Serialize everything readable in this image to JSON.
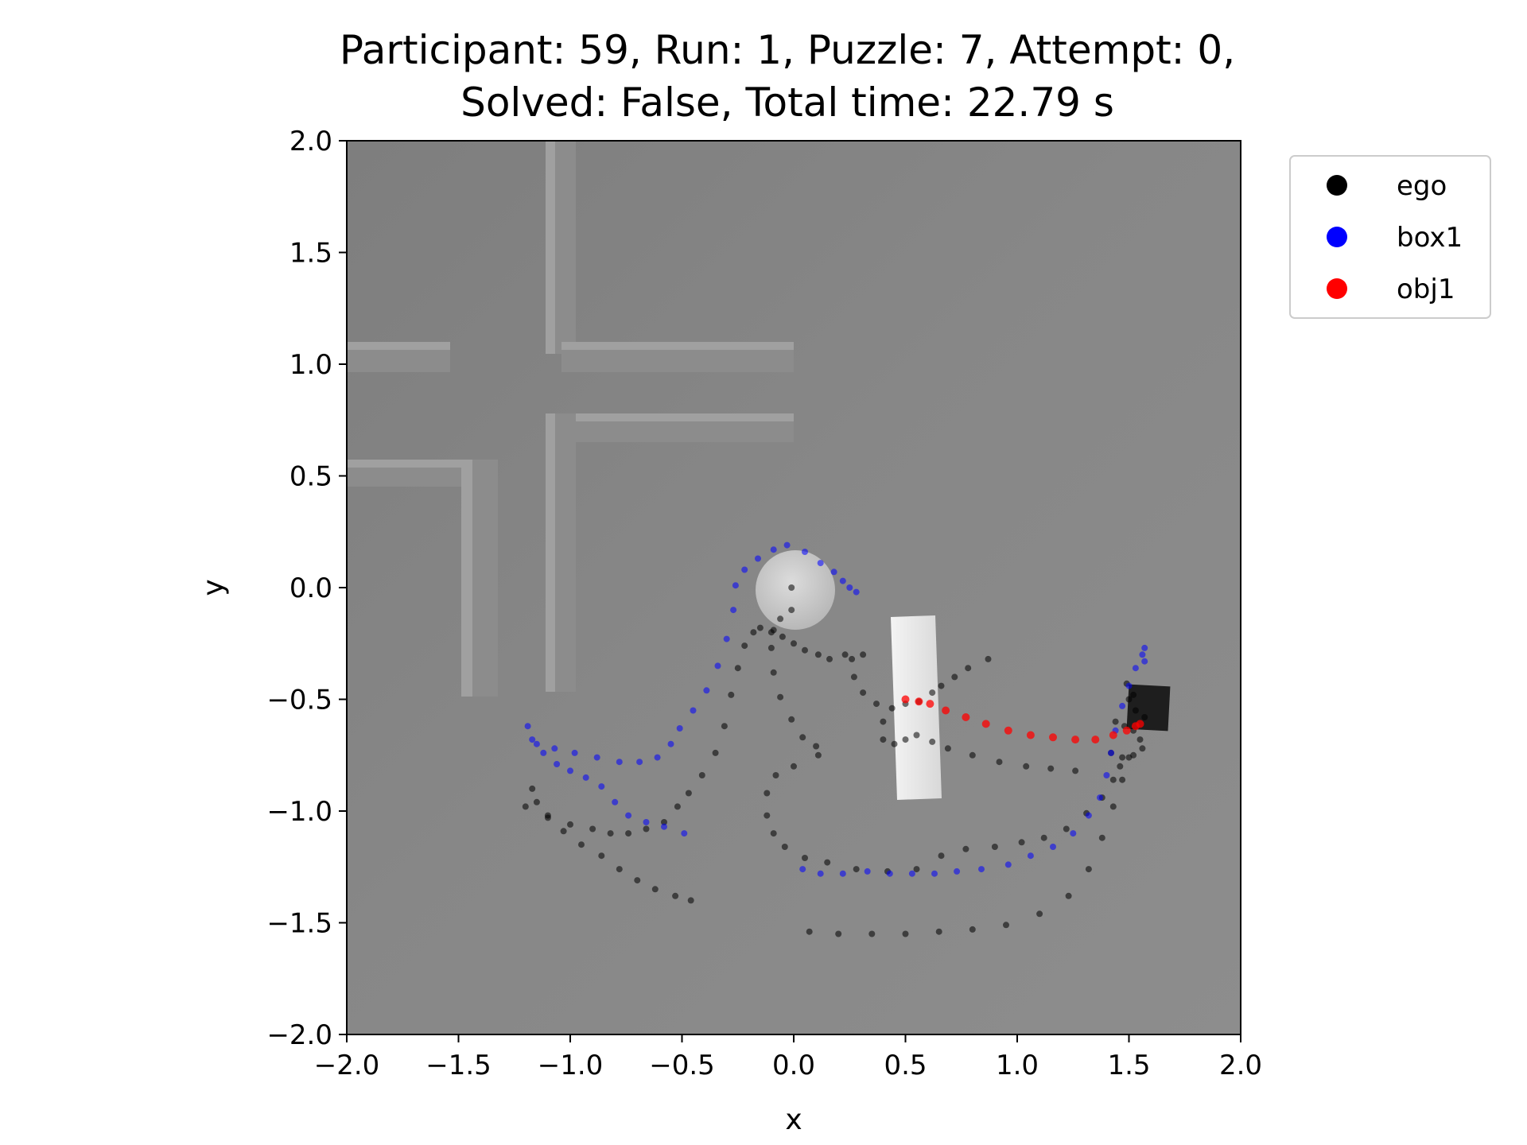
{
  "chart_data": {
    "type": "scatter",
    "title": "Participant: 59, Run: 1, Puzzle: 7, Attempt: 0,",
    "subtitle": "Solved: False, Total time: 22.79 s",
    "xlabel": "x",
    "ylabel": "y",
    "xlim": [
      -2.0,
      2.0
    ],
    "ylim": [
      -2.0,
      2.0
    ],
    "xticks": [
      "−2.0",
      "−1.5",
      "−1.0",
      "−0.5",
      "0.0",
      "0.5",
      "1.0",
      "1.5",
      "2.0"
    ],
    "yticks": [
      "−2.0",
      "−1.5",
      "−1.0",
      "−0.5",
      "0.0",
      "0.5",
      "1.0",
      "1.5",
      "2.0"
    ],
    "xtick_values": [
      -2.0,
      -1.5,
      -1.0,
      -0.5,
      0.0,
      0.5,
      1.0,
      1.5,
      2.0
    ],
    "ytick_values": [
      -2.0,
      -1.5,
      -1.0,
      -0.5,
      0.0,
      0.5,
      1.0,
      1.5,
      2.0
    ],
    "grid": false,
    "legend_position": "outside upper right",
    "background": "rendered top-down grey scene (walls, cylinder, white bar, dark cube)",
    "series": [
      {
        "name": "ego",
        "color": "#000000",
        "points": [
          [
            -1.17,
            -0.9
          ],
          [
            -1.15,
            -0.96
          ],
          [
            -1.1,
            -1.03
          ],
          [
            -1.03,
            -1.09
          ],
          [
            -0.95,
            -1.15
          ],
          [
            -0.86,
            -1.2
          ],
          [
            -0.78,
            -1.26
          ],
          [
            -0.7,
            -1.31
          ],
          [
            -0.62,
            -1.35
          ],
          [
            -0.53,
            -1.38
          ],
          [
            -0.46,
            -1.4
          ],
          [
            -1.2,
            -0.98
          ],
          [
            -1.1,
            -1.02
          ],
          [
            -1.0,
            -1.06
          ],
          [
            -0.9,
            -1.08
          ],
          [
            -0.82,
            -1.1
          ],
          [
            -0.74,
            -1.1
          ],
          [
            -0.66,
            -1.08
          ],
          [
            -0.58,
            -1.05
          ],
          [
            -0.52,
            -0.98
          ],
          [
            -0.47,
            -0.92
          ],
          [
            -0.41,
            -0.84
          ],
          [
            -0.35,
            -0.74
          ],
          [
            -0.31,
            -0.62
          ],
          [
            -0.28,
            -0.48
          ],
          [
            -0.25,
            -0.36
          ],
          [
            -0.22,
            -0.26
          ],
          [
            -0.18,
            -0.2
          ],
          [
            -0.15,
            -0.18
          ],
          [
            -0.1,
            -0.2
          ],
          [
            -0.05,
            -0.22
          ],
          [
            0.0,
            -0.25
          ],
          [
            0.05,
            -0.28
          ],
          [
            0.11,
            -0.3
          ],
          [
            0.16,
            -0.32
          ],
          [
            0.23,
            -0.3
          ],
          [
            0.31,
            -0.3
          ],
          [
            -0.01,
            0.0
          ],
          [
            -0.01,
            -0.1
          ],
          [
            -0.06,
            -0.14
          ],
          [
            -0.09,
            -0.19
          ],
          [
            -0.1,
            -0.27
          ],
          [
            -0.09,
            -0.38
          ],
          [
            -0.06,
            -0.49
          ],
          [
            -0.01,
            -0.59
          ],
          [
            0.04,
            -0.67
          ],
          [
            0.1,
            -0.71
          ],
          [
            0.11,
            -0.75
          ],
          [
            0.0,
            -0.8
          ],
          [
            -0.08,
            -0.84
          ],
          [
            -0.12,
            -0.92
          ],
          [
            -0.12,
            -1.02
          ],
          [
            -0.09,
            -1.1
          ],
          [
            -0.04,
            -1.16
          ],
          [
            0.05,
            -1.21
          ],
          [
            0.15,
            -1.23
          ],
          [
            0.28,
            -1.26
          ],
          [
            0.42,
            -1.27
          ],
          [
            0.55,
            -1.26
          ],
          [
            0.66,
            -1.2
          ],
          [
            0.77,
            -1.17
          ],
          [
            0.9,
            -1.16
          ],
          [
            1.02,
            -1.14
          ],
          [
            1.12,
            -1.12
          ],
          [
            1.22,
            -1.08
          ],
          [
            1.31,
            -1.01
          ],
          [
            1.38,
            -0.94
          ],
          [
            1.43,
            -0.86
          ],
          [
            1.46,
            -0.8
          ],
          [
            0.07,
            -1.54
          ],
          [
            0.2,
            -1.55
          ],
          [
            0.35,
            -1.55
          ],
          [
            0.5,
            -1.55
          ],
          [
            0.65,
            -1.54
          ],
          [
            0.8,
            -1.53
          ],
          [
            0.95,
            -1.51
          ],
          [
            1.1,
            -1.46
          ],
          [
            1.23,
            -1.38
          ],
          [
            1.32,
            -1.26
          ],
          [
            1.38,
            -1.12
          ],
          [
            1.43,
            -0.98
          ],
          [
            1.47,
            -0.86
          ],
          [
            1.5,
            -0.76
          ],
          [
            0.26,
            -0.32
          ],
          [
            0.27,
            -0.4
          ],
          [
            0.31,
            -0.47
          ],
          [
            0.37,
            -0.52
          ],
          [
            0.44,
            -0.54
          ],
          [
            0.5,
            -0.52
          ],
          [
            0.56,
            -0.51
          ],
          [
            0.4,
            -0.6
          ],
          [
            0.4,
            -0.68
          ],
          [
            0.45,
            -0.7
          ],
          [
            0.5,
            -0.68
          ],
          [
            0.55,
            -0.66
          ],
          [
            0.62,
            -0.69
          ],
          [
            0.69,
            -0.72
          ],
          [
            0.8,
            -0.75
          ],
          [
            0.92,
            -0.78
          ],
          [
            1.04,
            -0.8
          ],
          [
            1.15,
            -0.81
          ],
          [
            1.26,
            -0.82
          ],
          [
            0.62,
            -0.47
          ],
          [
            0.66,
            -0.44
          ],
          [
            0.72,
            -0.4
          ],
          [
            0.78,
            -0.36
          ],
          [
            0.87,
            -0.32
          ],
          [
            1.44,
            -0.6
          ],
          [
            1.48,
            -0.62
          ],
          [
            1.52,
            -0.64
          ],
          [
            1.55,
            -0.68
          ],
          [
            1.56,
            -0.72
          ],
          [
            1.52,
            -0.75
          ],
          [
            1.47,
            -0.76
          ],
          [
            1.42,
            -0.74
          ],
          [
            1.5,
            -0.5
          ],
          [
            1.53,
            -0.55
          ],
          [
            1.57,
            -0.58
          ],
          [
            1.49,
            -0.43
          ],
          [
            1.52,
            -0.48
          ]
        ]
      },
      {
        "name": "box1",
        "color": "#0000ff",
        "points": [
          [
            -1.19,
            -0.62
          ],
          [
            -1.17,
            -0.68
          ],
          [
            -1.12,
            -0.74
          ],
          [
            -1.06,
            -0.79
          ],
          [
            -1.0,
            -0.82
          ],
          [
            -0.93,
            -0.85
          ],
          [
            -0.86,
            -0.89
          ],
          [
            -0.8,
            -0.96
          ],
          [
            -0.74,
            -1.02
          ],
          [
            -0.66,
            -1.05
          ],
          [
            -0.58,
            -1.07
          ],
          [
            -0.49,
            -1.1
          ],
          [
            -1.15,
            -0.7
          ],
          [
            -1.07,
            -0.72
          ],
          [
            -0.98,
            -0.74
          ],
          [
            -0.88,
            -0.76
          ],
          [
            -0.78,
            -0.78
          ],
          [
            -0.69,
            -0.78
          ],
          [
            -0.61,
            -0.76
          ],
          [
            -0.55,
            -0.7
          ],
          [
            -0.51,
            -0.63
          ],
          [
            -0.45,
            -0.55
          ],
          [
            -0.39,
            -0.46
          ],
          [
            -0.34,
            -0.35
          ],
          [
            -0.3,
            -0.23
          ],
          [
            -0.27,
            -0.1
          ],
          [
            -0.26,
            0.01
          ],
          [
            -0.22,
            0.08
          ],
          [
            -0.16,
            0.13
          ],
          [
            -0.09,
            0.17
          ],
          [
            -0.03,
            0.19
          ],
          [
            0.05,
            0.16
          ],
          [
            0.12,
            0.11
          ],
          [
            0.18,
            0.07
          ],
          [
            0.22,
            0.03
          ],
          [
            0.25,
            0.0
          ],
          [
            0.28,
            -0.02
          ],
          [
            0.04,
            -1.26
          ],
          [
            0.12,
            -1.28
          ],
          [
            0.22,
            -1.28
          ],
          [
            0.33,
            -1.27
          ],
          [
            0.43,
            -1.28
          ],
          [
            0.53,
            -1.28
          ],
          [
            0.63,
            -1.28
          ],
          [
            0.73,
            -1.27
          ],
          [
            0.84,
            -1.26
          ],
          [
            0.96,
            -1.24
          ],
          [
            1.06,
            -1.2
          ],
          [
            1.16,
            -1.16
          ],
          [
            1.25,
            -1.1
          ],
          [
            1.32,
            -1.02
          ],
          [
            1.37,
            -0.94
          ],
          [
            1.4,
            -0.84
          ],
          [
            1.42,
            -0.74
          ],
          [
            1.44,
            -0.64
          ],
          [
            1.47,
            -0.53
          ],
          [
            1.5,
            -0.44
          ],
          [
            1.53,
            -0.36
          ],
          [
            1.56,
            -0.3
          ],
          [
            1.57,
            -0.27
          ],
          [
            1.57,
            -0.33
          ]
        ]
      },
      {
        "name": "obj1",
        "color": "#ff0000",
        "points": [
          [
            0.5,
            -0.5
          ],
          [
            0.56,
            -0.51
          ],
          [
            0.61,
            -0.52
          ],
          [
            0.68,
            -0.55
          ],
          [
            0.77,
            -0.58
          ],
          [
            0.86,
            -0.61
          ],
          [
            0.96,
            -0.64
          ],
          [
            1.06,
            -0.66
          ],
          [
            1.16,
            -0.67
          ],
          [
            1.26,
            -0.68
          ],
          [
            1.35,
            -0.68
          ],
          [
            1.43,
            -0.66
          ],
          [
            1.49,
            -0.64
          ],
          [
            1.53,
            -0.62
          ],
          [
            1.55,
            -0.61
          ]
        ]
      }
    ]
  }
}
